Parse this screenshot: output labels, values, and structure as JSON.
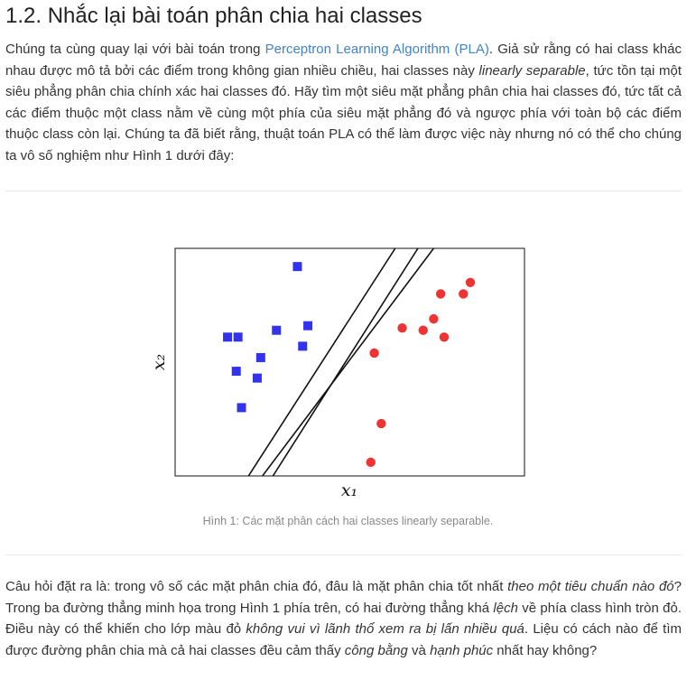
{
  "section": {
    "title": "1.2. Nhắc lại bài toán phân chia hai classes"
  },
  "paragraph1": {
    "part1": "Chúng ta cùng quay lại với bài toán trong ",
    "link": "Perceptron Learning Algorithm (PLA)",
    "part2": ". Giả sử rằng có hai class khác nhau được mô tả bởi các điểm trong không gian nhiều chiều, hai classes này ",
    "em1": "linearly separable",
    "part3": ", tức tồn tại một siêu phẳng phân chia chính xác hai classes đó. Hãy tìm một siêu mặt phẳng phân chia hai classes đó, tức tất cả các điểm thuộc một class nằm về cùng một phía của siêu mặt phẳng đó và ngược phía với toàn bộ các điểm thuộc class còn lại. Chúng ta đã biết rằng, thuật toán PLA có thể làm được việc này nhưng nó có thể cho chúng ta vô số nghiệm như Hình 1 dưới đây:"
  },
  "figure": {
    "caption": "Hình 1: Các mặt phân cách hai classes linearly separable."
  },
  "chart_data": {
    "type": "scatter",
    "xlabel": "x₁",
    "ylabel": "x₂",
    "xlim": [
      0,
      10
    ],
    "ylim": [
      0,
      10
    ],
    "grid": false,
    "series": [
      {
        "marker": "square",
        "color": "#3333ee",
        "points": [
          [
            3.5,
            9.2
          ],
          [
            3.8,
            6.6
          ],
          [
            2.9,
            6.4
          ],
          [
            1.5,
            6.1
          ],
          [
            1.8,
            6.1
          ],
          [
            3.65,
            5.7
          ],
          [
            2.45,
            5.2
          ],
          [
            1.75,
            4.6
          ],
          [
            2.35,
            4.3
          ],
          [
            1.9,
            3.0
          ]
        ]
      },
      {
        "marker": "circle",
        "color": "#ee3333",
        "points": [
          [
            8.45,
            8.5
          ],
          [
            8.25,
            8.0
          ],
          [
            7.6,
            8.0
          ],
          [
            7.4,
            6.9
          ],
          [
            6.5,
            6.5
          ],
          [
            7.1,
            6.4
          ],
          [
            7.7,
            6.1
          ],
          [
            5.7,
            5.4
          ],
          [
            5.9,
            2.3
          ],
          [
            5.6,
            0.6
          ]
        ]
      }
    ],
    "lines": [
      [
        [
          2.1,
          0.0
        ],
        [
          6.3,
          10.0
        ]
      ],
      [
        [
          2.8,
          0.0
        ],
        [
          6.95,
          10.0
        ]
      ],
      [
        [
          2.5,
          0.0
        ],
        [
          7.4,
          10.0
        ]
      ]
    ]
  },
  "paragraph2": {
    "part1": "Câu hỏi đặt ra là: trong vô số các mặt phân chia đó, đâu là mặt phân chia tốt nhất ",
    "em1": "theo một tiêu chuẩn nào đó",
    "part2": "? Trong ba đường thẳng minh họa trong Hình 1 phía trên, có hai đường thẳng khá ",
    "em2": "lệch",
    "part3": " về phía class hình tròn đỏ. Điều này có thể khiến cho lớp màu đỏ ",
    "em3": "không vui vì lãnh thổ xem ra bị lấn nhiều quá",
    "part4": ". Liệu có cách nào để tìm được đường phân chia mà cả hai classes đều cảm thấy ",
    "em4": "công bằng",
    "part5": " và ",
    "em5": "hạnh phúc",
    "part6": " nhất hay không?"
  }
}
